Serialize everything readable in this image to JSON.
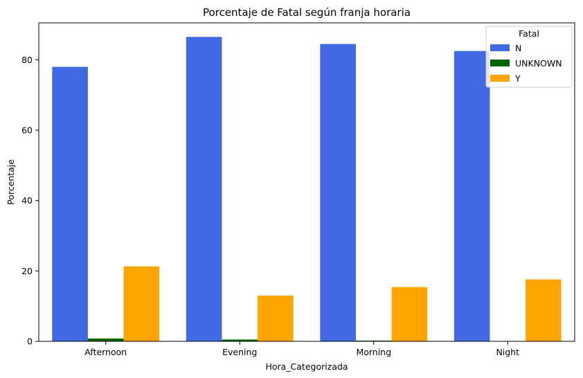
{
  "chart_data": {
    "type": "bar",
    "title": "Porcentaje de Fatal según franja horaria",
    "xlabel": "Hora_Categorizada",
    "ylabel": "Porcentaje",
    "categories": [
      "Afternoon",
      "Evening",
      "Morning",
      "Night"
    ],
    "ylim": [
      0,
      90.5
    ],
    "yticks": [
      0,
      20,
      40,
      60,
      80
    ],
    "grid": false,
    "legend": {
      "title": "Fatal",
      "placement": "top-right"
    },
    "series": [
      {
        "name": "N",
        "color": "#4169e1",
        "values": [
          78.0,
          86.5,
          84.5,
          82.5
        ]
      },
      {
        "name": "UNKNOWN",
        "color": "#006400",
        "values": [
          0.8,
          0.5,
          0.2,
          0.0
        ]
      },
      {
        "name": "Y",
        "color": "#ffa500",
        "values": [
          21.3,
          13.0,
          15.4,
          17.6
        ]
      }
    ]
  }
}
